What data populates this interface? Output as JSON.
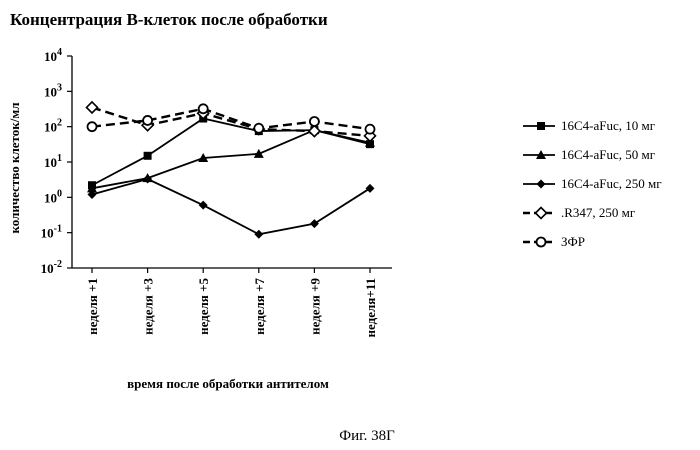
{
  "chart_data": {
    "type": "line",
    "title": "Концентрация В-клеток после обработки",
    "xlabel": "время после обработки антителом",
    "ylabel": "количество клеток/мл",
    "yscale": "log",
    "ylim": [
      0.01,
      10000
    ],
    "categories": [
      "неделя +1",
      "неделя +3",
      "неделя +5",
      "неделя +7",
      "неделя +9",
      "неделя+11"
    ],
    "yticks": [
      {
        "base": "10",
        "exp": "-2"
      },
      {
        "base": "10",
        "exp": "-1"
      },
      {
        "base": "10",
        "exp": "0"
      },
      {
        "base": "10",
        "exp": "1"
      },
      {
        "base": "10",
        "exp": "2"
      },
      {
        "base": "10",
        "exp": "3"
      },
      {
        "base": "10",
        "exp": "4"
      }
    ],
    "legend_position": "right",
    "series": [
      {
        "name": "16C4-aFuc, 10 мг",
        "marker": "square",
        "dash": false,
        "values": [
          2.2,
          15,
          170,
          75,
          80,
          32
        ]
      },
      {
        "name": "16C4-aFuc, 50 мг",
        "marker": "triangle",
        "dash": false,
        "values": [
          1.8,
          3.5,
          13,
          17,
          80,
          35
        ]
      },
      {
        "name": "16C4-aFuc, 250 мг",
        "marker": "diamond",
        "dash": false,
        "values": [
          1.2,
          3.3,
          0.6,
          0.09,
          0.18,
          1.8
        ]
      },
      {
        "name": ".R347, 250 мг",
        "marker": "open-diamond",
        "dash": true,
        "values": [
          350,
          110,
          240,
          85,
          75,
          55
        ]
      },
      {
        "name": "ЗФР",
        "marker": "open-circle",
        "dash": true,
        "values": [
          100,
          150,
          320,
          90,
          140,
          85
        ]
      }
    ]
  },
  "caption": "Фиг. 38Г"
}
